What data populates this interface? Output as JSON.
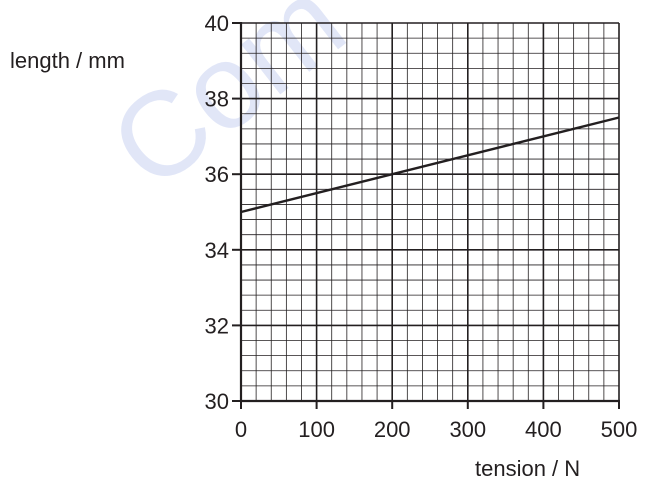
{
  "chart_data": {
    "type": "line",
    "title": "",
    "xlabel": "tension / N",
    "ylabel": "length / mm",
    "xlim": [
      0,
      500
    ],
    "ylim": [
      30,
      40
    ],
    "x_ticks": [
      0,
      100,
      200,
      300,
      400,
      500
    ],
    "y_ticks": [
      30,
      32,
      34,
      36,
      38,
      40
    ],
    "x_tick_labels": [
      "0",
      "100",
      "200",
      "300",
      "400",
      "500"
    ],
    "y_tick_labels": [
      "30",
      "32",
      "34",
      "36",
      "38",
      "40"
    ],
    "grid": true,
    "grid_minor_step": {
      "x": 20,
      "y": 0.4
    },
    "series": [
      {
        "x": [
          0,
          500
        ],
        "y": [
          35.0,
          37.5
        ]
      }
    ],
    "watermark": "Com",
    "colors": {
      "ink": "#231f20",
      "watermark": "#c9d2f2"
    }
  }
}
